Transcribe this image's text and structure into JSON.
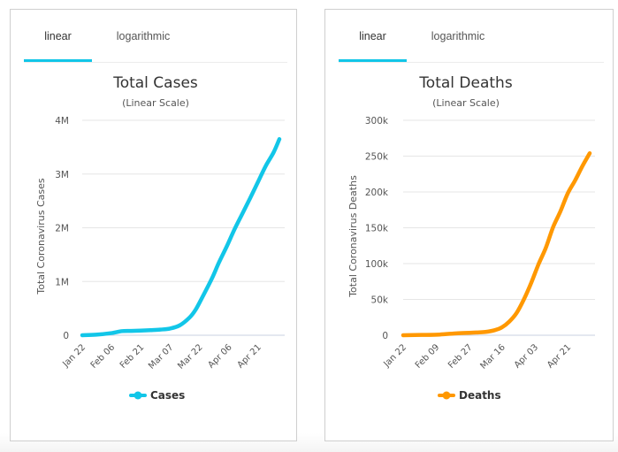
{
  "chart_data": [
    {
      "type": "line",
      "tabs": [
        {
          "label": "linear",
          "active": true
        },
        {
          "label": "logarithmic",
          "active": false
        }
      ],
      "title": "Total Cases",
      "subtitle": "(Linear Scale)",
      "xlabel": "",
      "ylabel": "Total Coronavirus Cases",
      "ylim": [
        0,
        4000000
      ],
      "yticks": [
        0,
        1000000,
        2000000,
        3000000,
        4000000
      ],
      "ytick_labels": [
        "0",
        "1M",
        "2M",
        "3M",
        "4M"
      ],
      "xtick_labels": [
        "Jan 22",
        "Feb 06",
        "Feb 21",
        "Mar 07",
        "Mar 22",
        "Apr 06",
        "Apr 21"
      ],
      "x_start": "Jan 22",
      "x_end": "May 02",
      "n_days": 102,
      "grid": true,
      "legend": {
        "position": "bottom",
        "entries": [
          "Cases"
        ]
      },
      "color": "#12c6e8",
      "series": [
        {
          "name": "Cases",
          "x_day": [
            0,
            7,
            15,
            20,
            25,
            30,
            35,
            40,
            45,
            50,
            55,
            58,
            61,
            64,
            67,
            70,
            74,
            78,
            82,
            86,
            90,
            94,
            98,
            101
          ],
          "values": [
            600,
            10000,
            40000,
            75000,
            80000,
            87000,
            95000,
            105000,
            125000,
            185000,
            330000,
            470000,
            670000,
            880000,
            1100000,
            1350000,
            1650000,
            1970000,
            2260000,
            2550000,
            2850000,
            3150000,
            3400000,
            3650000
          ]
        }
      ]
    },
    {
      "type": "line",
      "tabs": [
        {
          "label": "linear",
          "active": true
        },
        {
          "label": "logarithmic",
          "active": false
        }
      ],
      "title": "Total Deaths",
      "subtitle": "(Linear Scale)",
      "xlabel": "",
      "ylabel": "Total Coronavirus Deaths",
      "ylim": [
        0,
        300000
      ],
      "yticks": [
        0,
        50000,
        100000,
        150000,
        200000,
        250000,
        300000
      ],
      "ytick_labels": [
        "0",
        "50k",
        "100k",
        "150k",
        "200k",
        "250k",
        "300k"
      ],
      "xtick_labels": [
        "Jan 22",
        "Feb 09",
        "Feb 27",
        "Mar 16",
        "Apr 03",
        "Apr 21"
      ],
      "x_start": "Jan 22",
      "x_end": "May 03",
      "n_days": 103,
      "grid": true,
      "legend": {
        "position": "bottom",
        "entries": [
          "Deaths"
        ]
      },
      "color": "#ff9800",
      "series": [
        {
          "name": "Deaths",
          "x_day": [
            0,
            10,
            20,
            30,
            40,
            45,
            50,
            54,
            58,
            62,
            66,
            70,
            74,
            78,
            82,
            86,
            90,
            94,
            98,
            102
          ],
          "values": [
            17,
            400,
            1000,
            2800,
            3800,
            4600,
            7000,
            11000,
            19000,
            31000,
            50000,
            73000,
            99000,
            122000,
            151000,
            173000,
            198000,
            216000,
            236000,
            254000
          ]
        }
      ]
    }
  ]
}
